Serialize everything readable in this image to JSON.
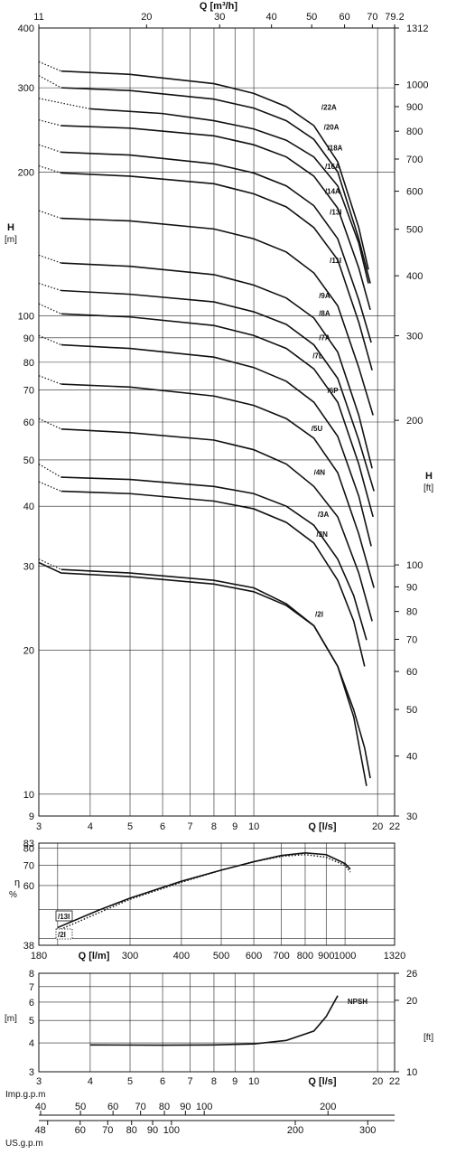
{
  "colors": {
    "line": "#111111",
    "grid": "#222222",
    "background": "#ffffff"
  },
  "chart_data": [
    {
      "type": "line",
      "name": "head",
      "x_scale": "log",
      "y_scale": "log",
      "xlim": [
        3,
        22
      ],
      "ylim": [
        9,
        400
      ],
      "x_ticks": [
        "3",
        "4",
        "5",
        "6",
        "7",
        "8",
        "9",
        "10",
        "20",
        "22"
      ],
      "x_tick_values": [
        3,
        4,
        5,
        6,
        7,
        8,
        9,
        10,
        20,
        22
      ],
      "xlabel": "Q [l/s]",
      "y_ticks": [
        "9",
        "10",
        "20",
        "30",
        "40",
        "50",
        "60",
        "70",
        "80",
        "90",
        "100",
        "200",
        "300",
        "400"
      ],
      "y_tick_values": [
        9,
        10,
        20,
        30,
        40,
        50,
        60,
        70,
        80,
        90,
        100,
        200,
        300,
        400
      ],
      "ylabel": "H",
      "ylabel_unit": "[m]",
      "top_axis": {
        "label": "Q [m³/h]",
        "ticks": [
          "11",
          "20",
          "30",
          "40",
          "50",
          "60",
          "70",
          "79.2"
        ],
        "tick_values": [
          11,
          20,
          30,
          40,
          50,
          60,
          70,
          79.2
        ]
      },
      "right_axis": {
        "label": "H",
        "unit": "[ft]",
        "ticks": [
          "30",
          "40",
          "50",
          "60",
          "70",
          "80",
          "90",
          "100",
          "200",
          "300",
          "400",
          "500",
          "600",
          "700",
          "800",
          "900",
          "1000",
          "1312"
        ],
        "tick_values": [
          30,
          40,
          50,
          60,
          70,
          80,
          90,
          100,
          200,
          300,
          400,
          500,
          600,
          700,
          800,
          900,
          1000,
          1312
        ]
      },
      "grid": true,
      "series": [
        {
          "name": "/22A",
          "label_at": [
            14.6,
            270
          ],
          "dotted": [
            [
              3,
              340
            ],
            [
              3.4,
              325
            ]
          ],
          "x": [
            3.4,
            5,
            8,
            10,
            12,
            14,
            16,
            18,
            19
          ],
          "y": [
            325,
            320,
            306,
            292,
            274,
            250,
            210,
            153,
            125
          ]
        },
        {
          "name": "/20A",
          "label_at": [
            14.8,
            245
          ],
          "dotted": [
            [
              3,
              318
            ],
            [
              3.4,
              300
            ]
          ],
          "x": [
            3.4,
            5,
            8,
            10,
            12,
            14,
            16,
            18,
            19.2
          ],
          "y": [
            300,
            296,
            284,
            272,
            256,
            234,
            200,
            145,
            117
          ]
        },
        {
          "name": "/18A",
          "label_at": [
            15.1,
            222
          ],
          "dotted": [
            [
              3,
              285
            ],
            [
              4,
              271
            ]
          ],
          "x": [
            4,
            6,
            8,
            10,
            12,
            14,
            16,
            18,
            19
          ],
          "y": [
            271,
            265,
            256,
            246,
            233,
            215,
            187,
            142,
            117
          ]
        },
        {
          "name": "/16A",
          "label_at": [
            14.9,
            203
          ],
          "dotted": [
            [
              3,
              257
            ],
            [
              3.4,
              250
            ]
          ],
          "x": [
            3.4,
            5,
            8,
            10,
            12,
            14,
            16,
            18,
            19.2
          ],
          "y": [
            250,
            247,
            238,
            228,
            215,
            196,
            168,
            126,
            103
          ]
        },
        {
          "name": "/14A",
          "label_at": [
            14.9,
            180
          ],
          "dotted": [
            [
              3,
              228
            ],
            [
              3.4,
              220
            ]
          ],
          "x": [
            3.4,
            5,
            8,
            10,
            12,
            14,
            16,
            18,
            19.3
          ],
          "y": [
            220,
            217,
            208,
            199,
            187,
            170,
            145,
            108,
            88
          ]
        },
        {
          "name": "/13I",
          "label_at": [
            15.3,
            163
          ],
          "dotted": [
            [
              3,
              206
            ],
            [
              3.4,
              199
            ]
          ],
          "x": [
            3.4,
            5,
            8,
            10,
            12,
            14,
            16,
            18,
            19.4
          ],
          "y": [
            199,
            196,
            189,
            180,
            169,
            153,
            131,
            97,
            77
          ]
        },
        {
          "name": "/11I",
          "label_at": [
            15.3,
            129
          ],
          "dotted": [
            [
              3,
              166
            ],
            [
              3.4,
              160
            ]
          ],
          "x": [
            3.4,
            5,
            8,
            10,
            12,
            14,
            16,
            18,
            19.5
          ],
          "y": [
            160,
            158,
            152,
            145,
            136,
            123,
            105,
            78,
            62
          ]
        },
        {
          "name": "/9A",
          "label_at": [
            14.4,
            109
          ],
          "dotted": [
            [
              3,
              134
            ],
            [
              3.4,
              129
            ]
          ],
          "x": [
            3.4,
            5,
            8,
            10,
            12,
            14,
            16,
            18,
            19.4
          ],
          "y": [
            129,
            127,
            122,
            116,
            109,
            99,
            84,
            62,
            48
          ]
        },
        {
          "name": "/8A",
          "label_at": [
            14.4,
            100
          ],
          "dotted": [
            [
              3,
              117
            ],
            [
              3.4,
              113
            ]
          ],
          "x": [
            3.4,
            5,
            8,
            10,
            12,
            14,
            16,
            18,
            19.6
          ],
          "y": [
            113,
            111,
            107,
            102,
            96,
            87,
            74,
            55,
            43
          ]
        },
        {
          "name": "/7A",
          "label_at": [
            14.4,
            89
          ],
          "dotted": [
            [
              3,
              106
            ],
            [
              3.4,
              101
            ]
          ],
          "x": [
            3.4,
            5,
            8,
            10,
            12,
            14,
            16,
            18,
            19.5
          ],
          "y": [
            101,
            99.5,
            95.5,
            91,
            85.5,
            77.5,
            66,
            49,
            38
          ]
        },
        {
          "name": "/7L",
          "label_at": [
            13.9,
            81.5
          ],
          "dotted": [
            [
              3,
              91
            ],
            [
              3.4,
              87
            ]
          ],
          "x": [
            3.4,
            5,
            8,
            10,
            12,
            14,
            16,
            18,
            19.3
          ],
          "y": [
            87,
            85.5,
            82,
            78,
            73,
            66,
            56,
            42,
            33
          ]
        },
        {
          "name": "/6P",
          "label_at": [
            15.1,
            69
          ],
          "dotted": [
            [
              3,
              75
            ],
            [
              3.4,
              72
            ]
          ],
          "x": [
            3.4,
            5,
            8,
            10,
            12,
            14,
            16,
            18,
            19.6
          ],
          "y": [
            72,
            71,
            68,
            65,
            61,
            55.5,
            47,
            35,
            27
          ]
        },
        {
          "name": "/5U",
          "label_at": [
            13.8,
            57.5
          ],
          "dotted": [
            [
              3,
              61
            ],
            [
              3.4,
              58
            ]
          ],
          "x": [
            3.4,
            5,
            8,
            10,
            12,
            14,
            16,
            18,
            19.4
          ],
          "y": [
            58,
            57,
            55,
            52.5,
            49,
            44,
            38,
            29,
            23
          ]
        },
        {
          "name": "/4N",
          "label_at": [
            14.0,
            46.5
          ],
          "dotted": [
            [
              3,
              49
            ],
            [
              3.4,
              46
            ]
          ],
          "x": [
            3.4,
            5,
            8,
            10,
            12,
            14,
            16,
            17.5,
            18.8
          ],
          "y": [
            46,
            45.5,
            44,
            42.5,
            40,
            36.5,
            31,
            26,
            21
          ]
        },
        {
          "name": "/3A",
          "label_at": [
            14.3,
            38
          ],
          "dotted": [
            [
              3,
              45
            ],
            [
              3.4,
              43
            ]
          ],
          "x": [
            3.4,
            5,
            8,
            10,
            12,
            14,
            16,
            17.5,
            18.6
          ],
          "y": [
            43,
            42.5,
            41,
            39.5,
            37,
            33.5,
            28,
            23,
            18.5
          ]
        },
        {
          "name": "/3N",
          "label_at": [
            14.2,
            34.5
          ],
          "dotted": [
            [
              3,
              31
            ],
            [
              3.4,
              29.5
            ]
          ],
          "x": [
            3.4,
            5,
            8,
            10,
            12,
            14,
            16,
            17.5,
            18.8
          ],
          "y": [
            29.5,
            29,
            28,
            27,
            25,
            22.5,
            18.5,
            14.5,
            10.4
          ]
        },
        {
          "name": "/2I",
          "label_at": [
            14.1,
            23.5
          ],
          "x": [],
          "y": []
        }
      ]
    },
    {
      "type": "line",
      "name": "efficiency",
      "x_scale": "log",
      "y_scale": "log",
      "xlim": [
        180,
        1320
      ],
      "ylim": [
        38,
        83
      ],
      "x_ticks": [
        "180",
        "300",
        "400",
        "500",
        "600",
        "700",
        "800",
        "900",
        "1000",
        "1320"
      ],
      "x_tick_values": [
        180,
        300,
        400,
        500,
        600,
        700,
        800,
        900,
        1000,
        1320
      ],
      "xlabel": "Q [l/m]",
      "y_ticks": [
        "38",
        "60",
        "70",
        "80",
        "83"
      ],
      "y_tick_values": [
        38,
        60,
        70,
        80,
        83
      ],
      "ylabel": "η",
      "ylabel_unit": "%",
      "grid": true,
      "series": [
        {
          "name": "/13I",
          "style": "solid",
          "x": [
            200,
            250,
            300,
            400,
            500,
            600,
            700,
            800,
            900,
            1000,
            1030
          ],
          "y": [
            43.5,
            49.5,
            54.5,
            62,
            67.5,
            72,
            75.5,
            77,
            76,
            71,
            68
          ]
        },
        {
          "name": "/2I",
          "style": "dotted",
          "x": [
            200,
            250,
            300,
            400,
            500,
            600,
            700,
            800,
            900,
            1000,
            1030
          ],
          "y": [
            42.5,
            48.5,
            54,
            61.5,
            67.5,
            72,
            75,
            76,
            74.5,
            70,
            66.5
          ]
        }
      ]
    },
    {
      "type": "line",
      "name": "npsh",
      "x_scale": "log",
      "y_scale": "log",
      "xlim": [
        3,
        22
      ],
      "ylim": [
        3,
        8
      ],
      "x_ticks": [
        "3",
        "4",
        "5",
        "6",
        "7",
        "8",
        "9",
        "10",
        "20",
        "22"
      ],
      "x_tick_values": [
        3,
        4,
        5,
        6,
        7,
        8,
        9,
        10,
        20,
        22
      ],
      "xlabel": "Q [l/s]",
      "y_ticks": [
        "3",
        "4",
        "5",
        "6",
        "7",
        "8"
      ],
      "y_tick_values": [
        3,
        4,
        5,
        6,
        7,
        8
      ],
      "ylabel_unit": "[m]",
      "right_axis": {
        "unit": "[ft]",
        "ticks": [
          "10",
          "20",
          "26"
        ],
        "tick_values": [
          10,
          20,
          26
        ]
      },
      "grid": true,
      "series": [
        {
          "name": "NPSH",
          "label_at": [
            16.9,
            5.9
          ],
          "x": [
            4,
            6,
            8,
            10,
            12,
            14,
            15,
            16
          ],
          "y": [
            3.92,
            3.91,
            3.92,
            3.96,
            4.1,
            4.5,
            5.2,
            6.4
          ]
        }
      ]
    }
  ],
  "imp_gpm": {
    "label": "Imp.g.p.m",
    "ticks": [
      "40",
      "50",
      "60",
      "70",
      "80",
      "90",
      "100",
      "200"
    ],
    "tick_values": [
      40,
      50,
      60,
      70,
      80,
      90,
      100,
      200
    ],
    "xlim": [
      39.6,
      290.4
    ]
  },
  "us_gpm": {
    "label": "US.g.p.m",
    "ticks": [
      "48",
      "60",
      "70",
      "80",
      "90",
      "100",
      "200",
      "300"
    ],
    "tick_values": [
      48,
      60,
      70,
      80,
      90,
      100,
      200,
      300
    ],
    "xlim": [
      47.6,
      348.7
    ]
  }
}
